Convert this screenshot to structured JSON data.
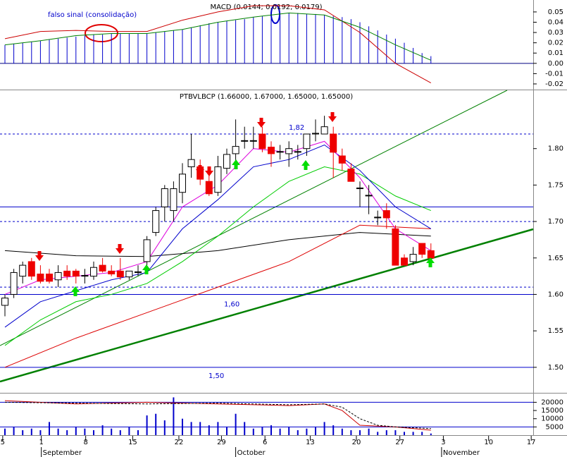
{
  "chart_data": [
    {
      "type": "macd",
      "title": "MACD (0.0144; 0.0192; 0.0179)",
      "annotation": "falso sinal (consolidação)",
      "ylim": [
        -0.0255,
        0.0616
      ],
      "yticks": [
        0.05,
        0.04,
        0.03,
        0.02,
        0.01,
        {
          "value": 0,
          "label": "0.00"
        },
        -0.01,
        -0.02
      ],
      "histogram": {
        "color": "#0000cc",
        "values": [
          0.018,
          0.019,
          0.02,
          0.021,
          0.022,
          0.023,
          0.024,
          0.025,
          0.026,
          0.027,
          0.028,
          0.028,
          0.029,
          0.029,
          0.029,
          0.029,
          0.029,
          0.03,
          0.031,
          0.032,
          0.033,
          0.035,
          0.037,
          0.039,
          0.04,
          0.041,
          0.042,
          0.043,
          0.045,
          0.046,
          0.047,
          0.048,
          0.049,
          0.049,
          0.048,
          0.048,
          0.047,
          0.046,
          0.045,
          0.043,
          0.04,
          0.036,
          0.032,
          0.028,
          0.024,
          0.02,
          0.015,
          0.01,
          0.007
        ]
      },
      "series": [
        {
          "color": "#cc0000",
          "x": [
            0,
            4,
            8,
            12,
            16,
            20,
            24,
            28,
            32,
            36,
            40,
            44,
            48
          ],
          "values": [
            0.024,
            0.031,
            0.032,
            0.031,
            0.031,
            0.042,
            0.05,
            0.056,
            0.056,
            0.052,
            0.03,
            0.0,
            -0.019
          ]
        },
        {
          "color": "#008000",
          "x": [
            0,
            4,
            8,
            12,
            16,
            20,
            24,
            28,
            32,
            36,
            40,
            44,
            48
          ],
          "values": [
            0.018,
            0.022,
            0.027,
            0.029,
            0.029,
            0.033,
            0.04,
            0.045,
            0.049,
            0.047,
            0.035,
            0.018,
            0.003
          ]
        }
      ]
    },
    {
      "type": "candlestick",
      "title": "PTBVLBCP (1.66000, 1.67000, 1.65000, 1.65000)",
      "ylim": [
        1.465,
        1.88
      ],
      "yticks": [
        {
          "value": 1.8,
          "label": "1.80"
        },
        1.75,
        {
          "value": 1.7,
          "label": "1.70"
        },
        1.65,
        {
          "value": 1.6,
          "label": "1.60"
        },
        1.55,
        {
          "value": 1.5,
          "label": "1.50"
        }
      ],
      "open": [
        1.585,
        1.6,
        1.625,
        1.645,
        1.628,
        1.628,
        1.62,
        1.632,
        1.632,
        1.625,
        1.625,
        1.64,
        1.632,
        1.632,
        1.624,
        1.63,
        1.645,
        1.685,
        1.72,
        1.715,
        1.74,
        1.775,
        1.775,
        1.755,
        1.74,
        1.773,
        1.793,
        1.81,
        1.81,
        1.82,
        1.802,
        1.795,
        1.793,
        1.795,
        1.8,
        1.82,
        1.82,
        1.82,
        1.79,
        1.772,
        1.745,
        1.735,
        1.705,
        1.715,
        1.69,
        1.65,
        1.645,
        1.67,
        1.66
      ],
      "high": [
        1.6,
        1.635,
        1.645,
        1.65,
        1.64,
        1.635,
        1.64,
        1.64,
        1.635,
        1.635,
        1.645,
        1.65,
        1.64,
        1.65,
        1.63,
        1.64,
        1.68,
        1.72,
        1.75,
        1.755,
        1.78,
        1.82,
        1.785,
        1.77,
        1.79,
        1.8,
        1.84,
        1.83,
        1.83,
        1.83,
        1.81,
        1.805,
        1.81,
        1.805,
        1.82,
        1.84,
        1.845,
        1.83,
        1.8,
        1.78,
        1.755,
        1.75,
        1.715,
        1.725,
        1.695,
        1.655,
        1.665,
        1.67,
        1.67
      ],
      "low": [
        1.57,
        1.595,
        1.615,
        1.62,
        1.615,
        1.615,
        1.61,
        1.62,
        1.615,
        1.615,
        1.62,
        1.63,
        1.625,
        1.62,
        1.62,
        1.625,
        1.64,
        1.68,
        1.7,
        1.7,
        1.725,
        1.76,
        1.75,
        1.735,
        1.735,
        1.765,
        1.78,
        1.8,
        1.8,
        1.795,
        1.775,
        1.785,
        1.775,
        1.785,
        1.79,
        1.81,
        1.82,
        1.76,
        1.77,
        1.755,
        1.72,
        1.71,
        1.695,
        1.69,
        1.64,
        1.64,
        1.64,
        1.65,
        1.65
      ],
      "close": [
        1.595,
        1.63,
        1.64,
        1.625,
        1.618,
        1.618,
        1.63,
        1.625,
        1.625,
        1.626,
        1.637,
        1.632,
        1.628,
        1.624,
        1.632,
        1.631,
        1.675,
        1.715,
        1.745,
        1.745,
        1.765,
        1.785,
        1.758,
        1.738,
        1.775,
        1.792,
        1.803,
        1.811,
        1.811,
        1.8,
        1.793,
        1.796,
        1.8,
        1.796,
        1.82,
        1.821,
        1.83,
        1.795,
        1.78,
        1.755,
        1.746,
        1.736,
        1.706,
        1.705,
        1.64,
        1.64,
        1.655,
        1.655,
        1.65
      ],
      "series": [
        {
          "color": "#000000",
          "x": [
            0,
            8,
            16,
            24,
            32,
            40,
            48
          ],
          "values": [
            1.66,
            1.653,
            1.652,
            1.66,
            1.675,
            1.685,
            1.68
          ]
        },
        {
          "color": "#dd0000",
          "x": [
            0,
            8,
            16,
            24,
            32,
            40,
            48
          ],
          "values": [
            1.5,
            1.54,
            1.575,
            1.61,
            1.645,
            1.695,
            1.69
          ]
        },
        {
          "color": "#00cc00",
          "x": [
            0,
            4,
            8,
            12,
            16,
            20,
            24,
            28,
            32,
            36,
            40,
            44,
            48
          ],
          "values": [
            1.53,
            1.565,
            1.59,
            1.6,
            1.615,
            1.645,
            1.68,
            1.72,
            1.755,
            1.775,
            1.765,
            1.735,
            1.715
          ]
        },
        {
          "color": "#0000cc",
          "x": [
            0,
            4,
            8,
            12,
            16,
            20,
            24,
            28,
            32,
            36,
            40,
            44,
            48
          ],
          "values": [
            1.555,
            1.59,
            1.605,
            1.62,
            1.63,
            1.69,
            1.73,
            1.775,
            1.785,
            1.805,
            1.77,
            1.72,
            1.69
          ]
        },
        {
          "color": "#dd00dd",
          "x": [
            0,
            4,
            8,
            12,
            16,
            20,
            24,
            28,
            32,
            36,
            40,
            44,
            48
          ],
          "values": [
            1.6,
            1.62,
            1.625,
            1.63,
            1.645,
            1.72,
            1.75,
            1.8,
            1.795,
            1.81,
            1.76,
            1.69,
            1.66
          ]
        }
      ],
      "levels": [
        {
          "value": 1.82,
          "label": "1,82",
          "style": "dashed"
        },
        {
          "value": 1.72,
          "style": "solid"
        },
        {
          "value": 1.7,
          "style": "dashed"
        },
        {
          "value": 1.61,
          "style": "dashed"
        },
        {
          "value": 1.6,
          "label": "1,60",
          "style": "solid"
        },
        {
          "value": 1.5,
          "label": "1,50",
          "style": "solid"
        }
      ]
    },
    {
      "type": "bar",
      "color": "#0000cc",
      "ylim": [
        0,
        25333
      ],
      "yticks": [
        20000,
        15000,
        10000,
        5000
      ],
      "grid_lines": [
        20000,
        5000
      ],
      "values": [
        4000,
        5000,
        3000,
        4000,
        3000,
        8000,
        4000,
        3000,
        5000,
        4000,
        3000,
        6000,
        4000,
        3000,
        5000,
        3000,
        12000,
        13000,
        9000,
        23000,
        10000,
        8000,
        8000,
        6000,
        8000,
        5000,
        13000,
        8000,
        4000,
        5000,
        6000,
        4000,
        5000,
        3000,
        4000,
        5000,
        8000,
        6000,
        4000,
        3000,
        3000,
        4000,
        2000,
        3000,
        3000,
        2000,
        2000,
        2000,
        1000
      ],
      "series": [
        {
          "color": "#cc0000",
          "x": [
            0,
            8,
            16,
            24,
            32,
            36,
            38,
            40,
            44,
            48
          ],
          "values": [
            21000,
            19000,
            20000,
            19000,
            18000,
            19000,
            15000,
            6000,
            5000,
            3000
          ]
        },
        {
          "color": "#000000",
          "dashed": true,
          "x": [
            0,
            8,
            16,
            24,
            32,
            36,
            38,
            40,
            42,
            44,
            48
          ],
          "values": [
            20000,
            19500,
            19000,
            19500,
            18500,
            19000,
            17000,
            10000,
            6000,
            5000,
            4000
          ]
        }
      ],
      "xticks": [
        {
          "value": -0.25,
          "label": "5"
        },
        {
          "value": 4.1,
          "label": "1"
        },
        {
          "value": 9.1,
          "label": "8"
        },
        {
          "value": 14.4,
          "label": "15"
        },
        {
          "value": 19.6,
          "label": "22"
        },
        {
          "value": 24.4,
          "label": "29"
        },
        {
          "value": 29.3,
          "label": "6"
        },
        {
          "value": 34.4,
          "label": "13"
        },
        {
          "value": 39.6,
          "label": "20"
        },
        {
          "value": 44.5,
          "label": "27"
        },
        {
          "value": 49.4,
          "label": "3"
        },
        {
          "value": 54.5,
          "label": "10"
        },
        {
          "value": 59.3,
          "label": "17"
        }
      ],
      "months": [
        {
          "value": 4.1,
          "label": "September"
        },
        {
          "value": 26,
          "label": "October"
        },
        {
          "value": 49.2,
          "label": "November"
        }
      ]
    }
  ]
}
